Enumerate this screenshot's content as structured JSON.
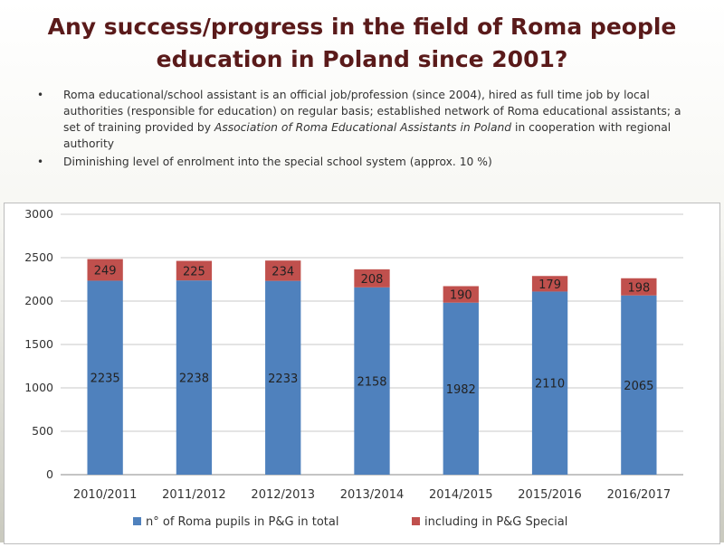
{
  "header": {
    "title_line1": "Any success/progress in the field of Roma people",
    "title_line2": "education in Poland since 2001?"
  },
  "bullets": [
    {
      "text_a": "Roma educational/school  assistant is an official job/profession (since 2004), hired as full time job by local authorities (responsible for education) on regular basis; established network of Roma educational assistants; a set of training provided by ",
      "text_italic": "Association of Roma Educational Assistants in Poland",
      "text_b": " in cooperation with regional authority"
    },
    {
      "text_a": "Diminishing level of enrolment into the special school system (approx. 10 %)",
      "text_italic": "",
      "text_b": ""
    }
  ],
  "colors": {
    "total": "#4f81bd",
    "special": "#c0504d",
    "title": "#5a1a1a"
  },
  "chart_data": {
    "type": "bar",
    "stacked": true,
    "categories": [
      "2010/2011",
      "2011/2012",
      "2012/2013",
      "2013/2014",
      "2014/2015",
      "2015/2016",
      "2016/2017"
    ],
    "series": [
      {
        "name": "n° of Roma pupils in P&G in total",
        "values": [
          2235,
          2238,
          2233,
          2158,
          1982,
          2110,
          2065
        ]
      },
      {
        "name": "including  in P&G Special",
        "values": [
          249,
          225,
          234,
          208,
          190,
          179,
          198
        ]
      }
    ],
    "y_ticks": [
      0,
      500,
      1000,
      1500,
      2000,
      2500,
      3000
    ],
    "ylim": [
      0,
      3000
    ],
    "grid": true,
    "legend_position": "bottom"
  }
}
